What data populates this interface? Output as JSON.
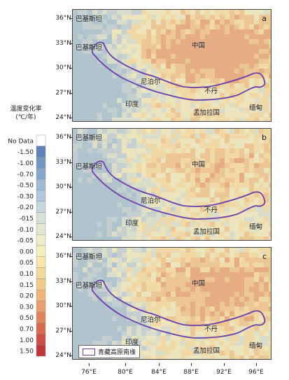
{
  "legend": {
    "title_line1": "温度变化率",
    "title_line2": "(℃/年)",
    "entries": [
      {
        "label": "No Data",
        "color": "#ffffff"
      },
      {
        "label": "-1.50",
        "color": "#5f83b8"
      },
      {
        "label": "-1.00",
        "color": "#7396c3"
      },
      {
        "label": "-0.70",
        "color": "#87a8cd"
      },
      {
        "label": "-0.50",
        "color": "#9cb9d6"
      },
      {
        "label": "-0.30",
        "color": "#b2c9dd"
      },
      {
        "label": "-0.20",
        "color": "#c6d7df"
      },
      {
        "label": "-015",
        "color": "#d5e1d8"
      },
      {
        "label": "-0.10",
        "color": "#e1e8cf"
      },
      {
        "label": "-0.05",
        "color": "#ebeec7"
      },
      {
        "label": "0.00",
        "color": "#f4f0bd"
      },
      {
        "label": "0.05",
        "color": "#f6e6ad"
      },
      {
        "label": "0.10",
        "color": "#f6d99d"
      },
      {
        "label": "0.15",
        "color": "#f3c98c"
      },
      {
        "label": "0.20",
        "color": "#efb57c"
      },
      {
        "label": "0.30",
        "color": "#e89e6d"
      },
      {
        "label": "0.50",
        "color": "#e0845e"
      },
      {
        "label": "0.70",
        "color": "#d76a51"
      },
      {
        "label": "1.00",
        "color": "#cc4e44"
      },
      {
        "label": "1.50",
        "color": "#c0353a"
      }
    ]
  },
  "lat_labels": [
    "36°N",
    "33°N",
    "30°N",
    "27°N",
    "24°N"
  ],
  "lon_labels": [
    "76°E",
    "80°E",
    "84°E",
    "88°E",
    "92°E",
    "96°E"
  ],
  "places": {
    "pakistan": "巴基斯坦",
    "china": "中国",
    "nepal": "尼泊尔",
    "bhutan": "不丹",
    "india": "印度",
    "bangladesh": "孟加拉国",
    "myanmar": "缅甸"
  },
  "panels": [
    {
      "id": "a",
      "label": "a",
      "warm": 0.55
    },
    {
      "id": "b",
      "label": "b",
      "warm": 0.25
    },
    {
      "id": "c",
      "label": "c",
      "warm": 0.45
    }
  ],
  "boundary_legend": "青藏高原南缘",
  "colors": {
    "boundary": "#6a3fa8"
  }
}
